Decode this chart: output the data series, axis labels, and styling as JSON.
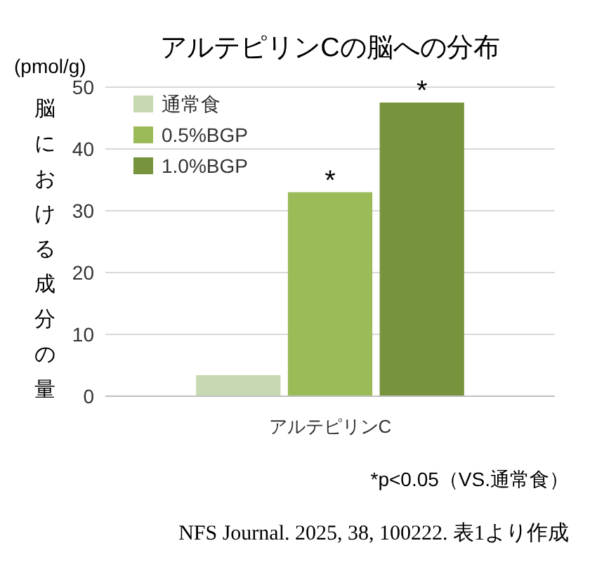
{
  "chart_data": {
    "type": "bar",
    "title": "アルテピリンCの脳への分布",
    "ylabel": "脳における成分の量",
    "categories": [
      "アルテピリンC"
    ],
    "series": [
      {
        "name": "通常食",
        "color": "#c6d9b0",
        "values": [
          3.4
        ],
        "value_labels": [
          null
        ]
      },
      {
        "name": "0.5%BGP",
        "color": "#9bbb59",
        "values": [
          33
        ],
        "value_labels": [
          "*"
        ]
      },
      {
        "name": "1.0%BGP",
        "color": "#77933c",
        "values": [
          47.5
        ],
        "value_labels": [
          "*"
        ]
      }
    ],
    "ylim": [
      0,
      50
    ],
    "yticks": [
      0,
      10,
      20,
      30,
      40,
      50
    ],
    "grid": "y",
    "legend": "top left",
    "annotations": [
      "(pmol/g)",
      "*p<0.05（VS.通常食）",
      "NFS Journal. 2025, 38, 100222. 表1より作成"
    ]
  }
}
